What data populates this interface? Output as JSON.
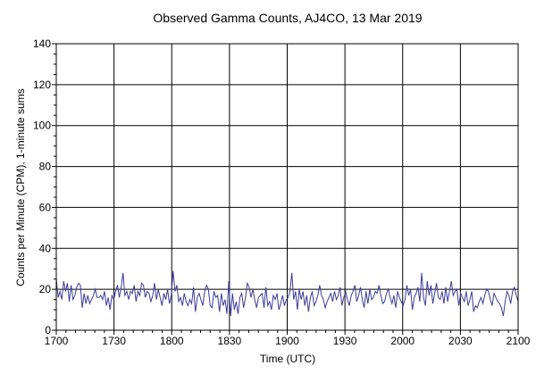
{
  "chart_data": {
    "type": "line",
    "title": "Observed Gamma Counts, AJ4CO, 13 Mar 2019",
    "xlabel": "Time (UTC)",
    "ylabel": "Counts per Minute (CPM), 1-minute sums",
    "x_range_minutes": [
      0,
      240
    ],
    "x_ticks": [
      {
        "label": "1700",
        "minute": 0
      },
      {
        "label": "1730",
        "minute": 30
      },
      {
        "label": "1800",
        "minute": 60
      },
      {
        "label": "1830",
        "minute": 90
      },
      {
        "label": "1900",
        "minute": 120
      },
      {
        "label": "1930",
        "minute": 150
      },
      {
        "label": "2000",
        "minute": 180
      },
      {
        "label": "2030",
        "minute": 210
      },
      {
        "label": "2100",
        "minute": 240
      }
    ],
    "ylim": [
      0,
      140
    ],
    "y_ticks": [
      0,
      20,
      40,
      60,
      80,
      100,
      120,
      140
    ],
    "grid": true,
    "line_color": "#3b3b9a",
    "series": [
      {
        "values": [
          25,
          16,
          19,
          15,
          24,
          19,
          23,
          14,
          22,
          15,
          17,
          21,
          23,
          22,
          11,
          18,
          13,
          17,
          13,
          15,
          17,
          20,
          16,
          16,
          17,
          15,
          19,
          12,
          16,
          10,
          17,
          15,
          19,
          22,
          16,
          21,
          28,
          17,
          19,
          15,
          19,
          18,
          22,
          14,
          19,
          17,
          23,
          22,
          16,
          19,
          18,
          14,
          17,
          23,
          15,
          20,
          16,
          12,
          18,
          15,
          20,
          13,
          17,
          29,
          19,
          22,
          14,
          16,
          12,
          18,
          14,
          12,
          15,
          13,
          21,
          9,
          16,
          18,
          15,
          12,
          19,
          22,
          20,
          12,
          11,
          19,
          16,
          17,
          9,
          18,
          12,
          15,
          8,
          24,
          7,
          18,
          10,
          14,
          8,
          16,
          18,
          11,
          16,
          23,
          21,
          16,
          20,
          15,
          11,
          16,
          17,
          18,
          11,
          21,
          12,
          14,
          10,
          17,
          15,
          18,
          10,
          13,
          17,
          12,
          15,
          16,
          19,
          28,
          15,
          19,
          10,
          20,
          15,
          19,
          12,
          17,
          9,
          16,
          19,
          12,
          14,
          17,
          22,
          17,
          15,
          11,
          14,
          16,
          18,
          14,
          19,
          15,
          17,
          21,
          12,
          16,
          19,
          15,
          12,
          17,
          19,
          22,
          14,
          17,
          21,
          15,
          11,
          19,
          13,
          20,
          15,
          16,
          19,
          18,
          22,
          17,
          13,
          14,
          18,
          20,
          16,
          13,
          17,
          11,
          19,
          16,
          14,
          12,
          15,
          22,
          17,
          20,
          10,
          16,
          18,
          21,
          14,
          28,
          16,
          12,
          24,
          17,
          22,
          13,
          18,
          23,
          16,
          15,
          19,
          13,
          21,
          14,
          19,
          24,
          17,
          19,
          20,
          12,
          18,
          16,
          14,
          19,
          12,
          15,
          19,
          9,
          12,
          11,
          14,
          16,
          13,
          17,
          20,
          19,
          15,
          12,
          18,
          16,
          14,
          13,
          11,
          7,
          14,
          19,
          17,
          13,
          19,
          21,
          17,
          14
        ]
      }
    ]
  }
}
